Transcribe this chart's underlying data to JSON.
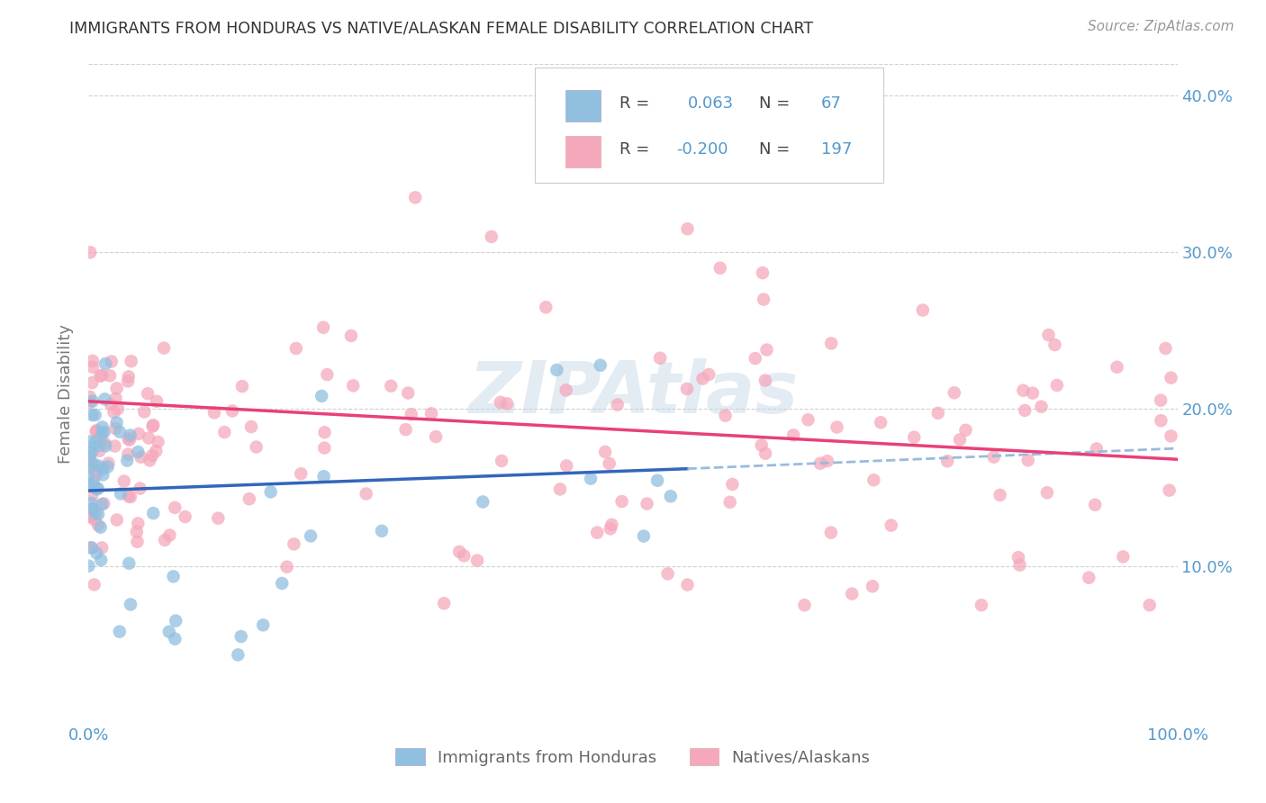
{
  "title": "IMMIGRANTS FROM HONDURAS VS NATIVE/ALASKAN FEMALE DISABILITY CORRELATION CHART",
  "source": "Source: ZipAtlas.com",
  "ylabel": "Female Disability",
  "legend_label1": "Immigrants from Honduras",
  "legend_label2": "Natives/Alaskans",
  "r1": 0.063,
  "n1": 67,
  "r2": -0.2,
  "n2": 197,
  "color_blue": "#90bfe0",
  "color_pink": "#f5a8bc",
  "color_trendline_blue": "#3366bb",
  "color_trendline_pink": "#e8407a",
  "color_trendline_gray": "#99bbdd",
  "background_color": "#ffffff",
  "grid_color": "#cccccc",
  "axis_label_color": "#5599cc",
  "ylim": [
    0.0,
    0.42
  ],
  "yticks": [
    0.1,
    0.2,
    0.3,
    0.4
  ],
  "ytick_labels": [
    "10.0%",
    "20.0%",
    "30.0%",
    "40.0%"
  ],
  "watermark_color": "#c8d8e8",
  "watermark_alpha": 0.5
}
